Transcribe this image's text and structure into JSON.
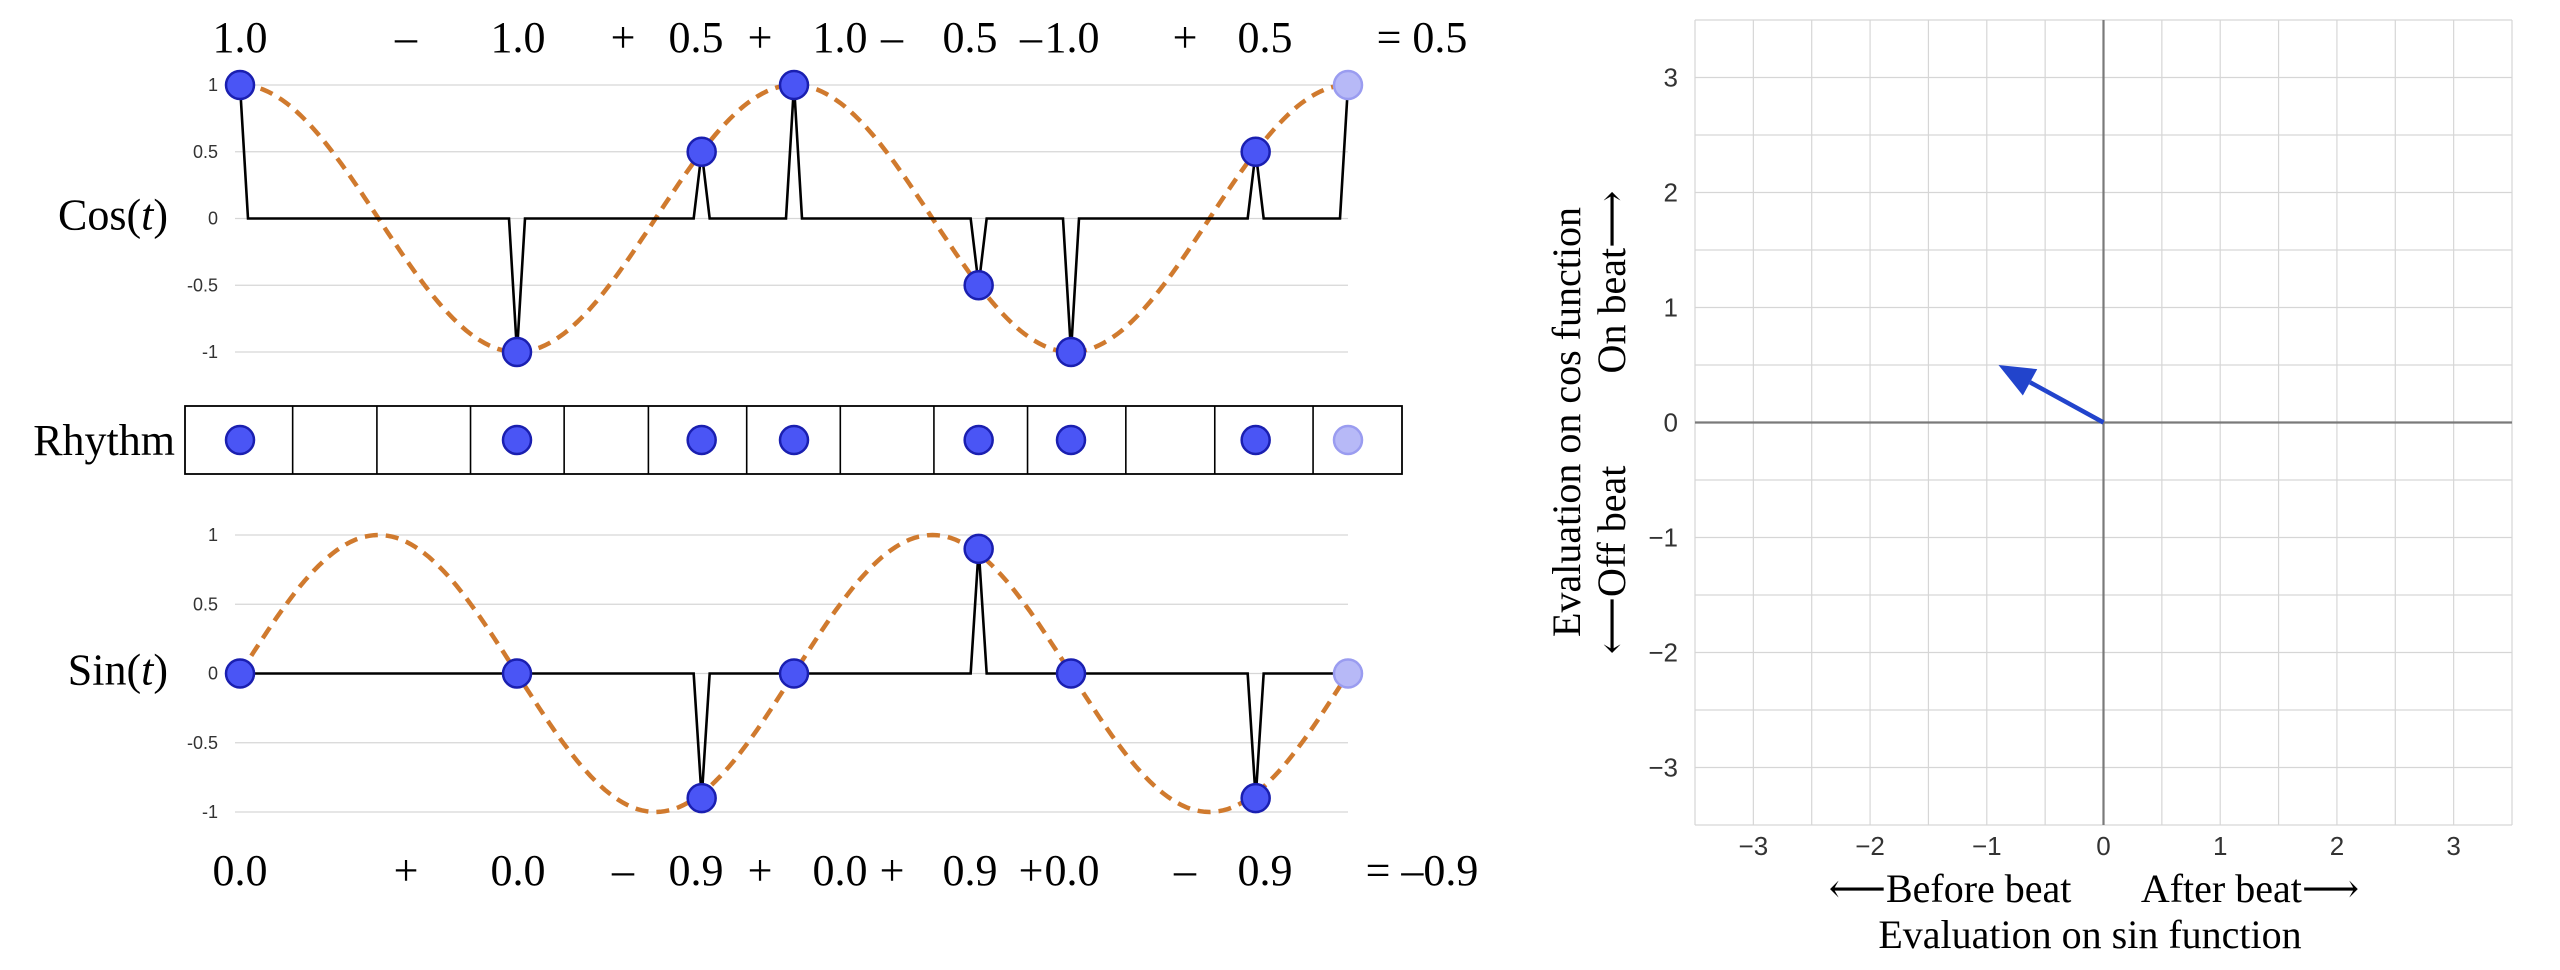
{
  "colors": {
    "point_fill": "#4a55f5",
    "point_stroke": "#1a1fb0",
    "point_faded_fill": "#b7b9f7",
    "point_faded_stroke": "#9a9cf0",
    "curve": "#d07a2e",
    "spike": "#000000",
    "grid": "#d6d6d6",
    "axis": "#7a7a7a",
    "arrow": "#2244cc"
  },
  "cos_panel": {
    "label_fn": "Cos(",
    "label_var": "t",
    "label_close": ")",
    "yticks": [
      "1",
      "0.5",
      "0",
      "-0.5",
      "-1"
    ],
    "ytick_values": [
      1,
      0.5,
      0,
      -0.5,
      -1
    ],
    "sum_terms": [
      "1.0",
      "–",
      "1.0",
      "+",
      "0.5",
      "+",
      "1.0",
      "–",
      "0.5",
      "–",
      "1.0",
      "+",
      "0.5",
      "= 0.5"
    ]
  },
  "sin_panel": {
    "label_fn": "Sin(",
    "label_var": "t",
    "label_close": ")",
    "yticks": [
      "1",
      "0.5",
      "0",
      "-0.5",
      "-1"
    ],
    "ytick_values": [
      1,
      0.5,
      0,
      -0.5,
      -1
    ],
    "sum_terms": [
      "0.0",
      "+",
      "0.0",
      "–",
      "0.9",
      "+",
      "0.0",
      "+",
      "0.9",
      "+",
      "0.0",
      "–",
      "0.9",
      "= –0.9"
    ]
  },
  "rhythm": {
    "label": "Rhythm",
    "cells": 13,
    "cell_boundaries": [
      0,
      1.15,
      2.05,
      3.05,
      4.05,
      4.95,
      6.0,
      7.0,
      8.0,
      9.0,
      10.05,
      11.0,
      12.05,
      13.0
    ]
  },
  "chart_data": [
    {
      "type": "line",
      "panel": "cos",
      "x_range": [
        0,
        12
      ],
      "ylim": [
        -1,
        1
      ],
      "grid": true,
      "curve_function": "cos(2*pi*x/6)",
      "points": [
        {
          "x": 0,
          "y": 1
        },
        {
          "x": 3,
          "y": -1
        },
        {
          "x": 5,
          "y": 0.5
        },
        {
          "x": 6,
          "y": 1
        },
        {
          "x": 8,
          "y": -0.5
        },
        {
          "x": 9,
          "y": -1
        },
        {
          "x": 11,
          "y": 0.5
        },
        {
          "x": 12,
          "y": 1,
          "faded": true
        }
      ]
    },
    {
      "type": "line",
      "panel": "sin",
      "x_range": [
        0,
        12
      ],
      "ylim": [
        -1,
        1
      ],
      "grid": true,
      "curve_function": "sin(2*pi*x/6)",
      "points": [
        {
          "x": 0,
          "y": 0
        },
        {
          "x": 3,
          "y": 0
        },
        {
          "x": 5,
          "y": -0.9
        },
        {
          "x": 6,
          "y": 0
        },
        {
          "x": 8,
          "y": 0.9
        },
        {
          "x": 9,
          "y": 0
        },
        {
          "x": 11,
          "y": -0.9
        },
        {
          "x": 12,
          "y": 0,
          "faded": true
        }
      ]
    },
    {
      "type": "scatter",
      "panel": "vector",
      "xlim": [
        -3.5,
        3.5
      ],
      "ylim": [
        -3.5,
        3.5
      ],
      "grid": true,
      "xticks": [
        -3,
        -2,
        -1,
        0,
        1,
        2,
        3
      ],
      "yticks": [
        -3,
        -2,
        -1,
        0,
        1,
        2,
        3
      ],
      "xtick_labels": [
        "−3",
        "−2",
        "−1",
        "0",
        "1",
        "2",
        "3"
      ],
      "ytick_labels": [
        "3",
        "2",
        "1",
        "0",
        "−1",
        "−2",
        "−3"
      ],
      "vector": {
        "x": -0.9,
        "y": 0.5
      },
      "xlabel_left": "⟵Before beat",
      "xlabel_right": "After beat⟶",
      "xlabel": "Evaluation on sin function",
      "ylabel": "Evaluation on cos function",
      "ylabel_up": "On beat⟶",
      "ylabel_down": "⟵Off beat"
    }
  ]
}
